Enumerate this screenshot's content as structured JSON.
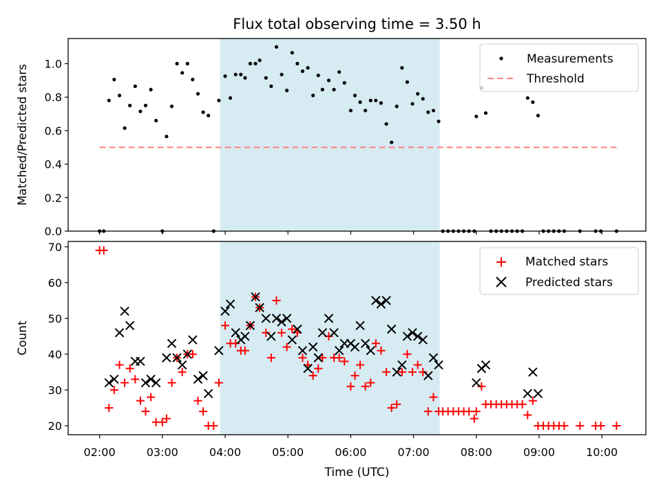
{
  "chart_data": [
    {
      "type": "scatter",
      "title": "Flux total observing time = 3.50 h",
      "xlabel": "",
      "ylabel": "Matched/Predicted stars",
      "xlim": [
        1.5,
        10.7
      ],
      "ylim": [
        0.0,
        1.15
      ],
      "yticks": [
        0.0,
        0.2,
        0.4,
        0.6,
        0.8,
        1.0
      ],
      "yticklabels": [
        "0.0",
        "0.2",
        "0.4",
        "0.6",
        "0.8",
        "1.0"
      ],
      "shaded_span": [
        3.917,
        7.417
      ],
      "threshold": {
        "label": "Threshold",
        "y": 0.5,
        "x": [
          2.0,
          10.233
        ],
        "color": "#ff8080"
      },
      "legend": {
        "position": "top-right",
        "entries": [
          "Measurements",
          "Threshold"
        ]
      },
      "series": [
        {
          "name": "Measurements",
          "color": "#000000",
          "points": [
            [
              2.0,
              0.0
            ],
            [
              2.067,
              0.0
            ],
            [
              2.15,
              0.78
            ],
            [
              2.233,
              0.905
            ],
            [
              2.317,
              0.81
            ],
            [
              2.4,
              0.615
            ],
            [
              2.483,
              0.75
            ],
            [
              2.567,
              0.865
            ],
            [
              2.65,
              0.715
            ],
            [
              2.733,
              0.75
            ],
            [
              2.817,
              0.845
            ],
            [
              2.9,
              0.66
            ],
            [
              3.0,
              0.0
            ],
            [
              3.067,
              0.565
            ],
            [
              3.15,
              0.745
            ],
            [
              3.233,
              1.0
            ],
            [
              3.317,
              0.945
            ],
            [
              3.4,
              1.0
            ],
            [
              3.483,
              0.905
            ],
            [
              3.567,
              0.82
            ],
            [
              3.65,
              0.71
            ],
            [
              3.733,
              0.69
            ],
            [
              3.817,
              0.0
            ],
            [
              3.9,
              0.78
            ],
            [
              4.0,
              0.925
            ],
            [
              4.083,
              0.795
            ],
            [
              4.167,
              0.935
            ],
            [
              4.25,
              0.935
            ],
            [
              4.317,
              0.915
            ],
            [
              4.4,
              1.0
            ],
            [
              4.483,
              1.0
            ],
            [
              4.55,
              1.02
            ],
            [
              4.65,
              0.915
            ],
            [
              4.733,
              0.865
            ],
            [
              4.817,
              1.1
            ],
            [
              4.9,
              0.935
            ],
            [
              4.983,
              0.84
            ],
            [
              5.067,
              1.065
            ],
            [
              5.15,
              1.0
            ],
            [
              5.233,
              0.955
            ],
            [
              5.317,
              0.975
            ],
            [
              5.4,
              0.81
            ],
            [
              5.483,
              0.93
            ],
            [
              5.55,
              0.845
            ],
            [
              5.65,
              0.9
            ],
            [
              5.733,
              0.845
            ],
            [
              5.817,
              0.95
            ],
            [
              5.9,
              0.885
            ],
            [
              6.0,
              0.72
            ],
            [
              6.067,
              0.81
            ],
            [
              6.15,
              0.77
            ],
            [
              6.233,
              0.72
            ],
            [
              6.317,
              0.78
            ],
            [
              6.4,
              0.78
            ],
            [
              6.483,
              0.765
            ],
            [
              6.567,
              0.64
            ],
            [
              6.65,
              0.53
            ],
            [
              6.733,
              0.745
            ],
            [
              6.817,
              0.975
            ],
            [
              6.9,
              0.89
            ],
            [
              6.983,
              0.76
            ],
            [
              7.067,
              0.82
            ],
            [
              7.15,
              0.79
            ],
            [
              7.233,
              0.71
            ],
            [
              7.317,
              0.72
            ],
            [
              7.4,
              0.655
            ],
            [
              7.467,
              0.0
            ],
            [
              7.55,
              0.0
            ],
            [
              7.633,
              0.0
            ],
            [
              7.717,
              0.0
            ],
            [
              7.8,
              0.0
            ],
            [
              7.883,
              0.0
            ],
            [
              7.967,
              0.0
            ],
            [
              8.0,
              0.685
            ],
            [
              8.083,
              0.855
            ],
            [
              8.15,
              0.705
            ],
            [
              8.233,
              0.0
            ],
            [
              8.317,
              0.0
            ],
            [
              8.4,
              0.0
            ],
            [
              8.483,
              0.0
            ],
            [
              8.567,
              0.0
            ],
            [
              8.65,
              0.0
            ],
            [
              8.733,
              0.0
            ],
            [
              8.817,
              0.795
            ],
            [
              8.9,
              0.77
            ],
            [
              8.983,
              0.69
            ],
            [
              9.067,
              0.0
            ],
            [
              9.15,
              0.0
            ],
            [
              9.233,
              0.0
            ],
            [
              9.317,
              0.0
            ],
            [
              9.4,
              0.0
            ],
            [
              9.65,
              0.0
            ],
            [
              9.9,
              0.0
            ],
            [
              9.983,
              0.0
            ],
            [
              10.233,
              0.0
            ]
          ]
        }
      ]
    },
    {
      "type": "scatter",
      "title": "",
      "xlabel": "Time (UTC)",
      "ylabel": "Count",
      "xlim": [
        1.5,
        10.7
      ],
      "ylim": [
        17.5,
        71.5
      ],
      "xticks": [
        2,
        3,
        4,
        5,
        6,
        7,
        8,
        9,
        10
      ],
      "xticklabels": [
        "02:00",
        "03:00",
        "04:00",
        "05:00",
        "06:00",
        "07:00",
        "08:00",
        "09:00",
        "10:00"
      ],
      "yticks": [
        20,
        30,
        40,
        50,
        60,
        70
      ],
      "yticklabels": [
        "20",
        "30",
        "40",
        "50",
        "60",
        "70"
      ],
      "shaded_span": [
        3.917,
        7.417
      ],
      "legend": {
        "position": "top-right",
        "entries": [
          "Matched stars",
          "Predicted stars"
        ]
      },
      "series": [
        {
          "name": "Matched stars",
          "marker": "plus",
          "color": "#ff0000",
          "points": [
            [
              2.0,
              69
            ],
            [
              2.067,
              69
            ],
            [
              2.15,
              25
            ],
            [
              2.233,
              30
            ],
            [
              2.317,
              37
            ],
            [
              2.4,
              32
            ],
            [
              2.483,
              36
            ],
            [
              2.567,
              33
            ],
            [
              2.65,
              27
            ],
            [
              2.733,
              24
            ],
            [
              2.817,
              28
            ],
            [
              2.9,
              21
            ],
            [
              3.0,
              21
            ],
            [
              3.067,
              22
            ],
            [
              3.15,
              32
            ],
            [
              3.233,
              39
            ],
            [
              3.317,
              35
            ],
            [
              3.4,
              40
            ],
            [
              3.483,
              40
            ],
            [
              3.567,
              27
            ],
            [
              3.65,
              24
            ],
            [
              3.733,
              20
            ],
            [
              3.817,
              20
            ],
            [
              3.9,
              32
            ],
            [
              4.0,
              48
            ],
            [
              4.083,
              43
            ],
            [
              4.167,
              43
            ],
            [
              4.25,
              41
            ],
            [
              4.317,
              41
            ],
            [
              4.4,
              48
            ],
            [
              4.483,
              56
            ],
            [
              4.55,
              53
            ],
            [
              4.65,
              46
            ],
            [
              4.733,
              39
            ],
            [
              4.817,
              55
            ],
            [
              4.9,
              46
            ],
            [
              4.983,
              42
            ],
            [
              5.067,
              47
            ],
            [
              5.15,
              46
            ],
            [
              5.233,
              39
            ],
            [
              5.317,
              37
            ],
            [
              5.4,
              34
            ],
            [
              5.483,
              36
            ],
            [
              5.55,
              39
            ],
            [
              5.65,
              45
            ],
            [
              5.733,
              39
            ],
            [
              5.817,
              39
            ],
            [
              5.9,
              38
            ],
            [
              6.0,
              31
            ],
            [
              6.067,
              34
            ],
            [
              6.15,
              37
            ],
            [
              6.233,
              31
            ],
            [
              6.317,
              32
            ],
            [
              6.4,
              43
            ],
            [
              6.483,
              41
            ],
            [
              6.567,
              35
            ],
            [
              6.65,
              25
            ],
            [
              6.733,
              26
            ],
            [
              6.817,
              35
            ],
            [
              6.9,
              40
            ],
            [
              6.983,
              35
            ],
            [
              7.067,
              37
            ],
            [
              7.15,
              35
            ],
            [
              7.233,
              24
            ],
            [
              7.317,
              28
            ],
            [
              7.4,
              24
            ],
            [
              7.467,
              24
            ],
            [
              7.55,
              24
            ],
            [
              7.633,
              24
            ],
            [
              7.717,
              24
            ],
            [
              7.8,
              24
            ],
            [
              7.883,
              24
            ],
            [
              7.967,
              22
            ],
            [
              8.0,
              24
            ],
            [
              8.083,
              31
            ],
            [
              8.15,
              26
            ],
            [
              8.233,
              26
            ],
            [
              8.317,
              26
            ],
            [
              8.4,
              26
            ],
            [
              8.483,
              26
            ],
            [
              8.567,
              26
            ],
            [
              8.65,
              26
            ],
            [
              8.733,
              26
            ],
            [
              8.817,
              23
            ],
            [
              8.9,
              27
            ],
            [
              8.983,
              20
            ],
            [
              9.067,
              20
            ],
            [
              9.15,
              20
            ],
            [
              9.233,
              20
            ],
            [
              9.317,
              20
            ],
            [
              9.4,
              20
            ],
            [
              9.65,
              20
            ],
            [
              9.9,
              20
            ],
            [
              9.983,
              20
            ],
            [
              10.233,
              20
            ]
          ]
        },
        {
          "name": "Predicted stars",
          "marker": "x",
          "color": "#000000",
          "points": [
            [
              2.15,
              32
            ],
            [
              2.233,
              33
            ],
            [
              2.317,
              46
            ],
            [
              2.4,
              52
            ],
            [
              2.483,
              48
            ],
            [
              2.567,
              38
            ],
            [
              2.65,
              38
            ],
            [
              2.733,
              32
            ],
            [
              2.817,
              33
            ],
            [
              2.9,
              32
            ],
            [
              3.067,
              39
            ],
            [
              3.15,
              43
            ],
            [
              3.233,
              39
            ],
            [
              3.317,
              37
            ],
            [
              3.4,
              40
            ],
            [
              3.483,
              44
            ],
            [
              3.567,
              33
            ],
            [
              3.65,
              34
            ],
            [
              3.733,
              29
            ],
            [
              3.9,
              41
            ],
            [
              4.0,
              52
            ],
            [
              4.083,
              54
            ],
            [
              4.167,
              46
            ],
            [
              4.25,
              44
            ],
            [
              4.317,
              45
            ],
            [
              4.4,
              48
            ],
            [
              4.483,
              56
            ],
            [
              4.55,
              53
            ],
            [
              4.65,
              50
            ],
            [
              4.733,
              45
            ],
            [
              4.817,
              50
            ],
            [
              4.9,
              49
            ],
            [
              4.983,
              50
            ],
            [
              5.067,
              44
            ],
            [
              5.15,
              47
            ],
            [
              5.233,
              41
            ],
            [
              5.317,
              36
            ],
            [
              5.4,
              42
            ],
            [
              5.483,
              39
            ],
            [
              5.55,
              46
            ],
            [
              5.65,
              50
            ],
            [
              5.733,
              46
            ],
            [
              5.817,
              41
            ],
            [
              5.9,
              43
            ],
            [
              6.0,
              43
            ],
            [
              6.067,
              42
            ],
            [
              6.15,
              48
            ],
            [
              6.233,
              43
            ],
            [
              6.317,
              41
            ],
            [
              6.4,
              55
            ],
            [
              6.483,
              54
            ],
            [
              6.567,
              55
            ],
            [
              6.65,
              47
            ],
            [
              6.733,
              35
            ],
            [
              6.817,
              37
            ],
            [
              6.9,
              45
            ],
            [
              6.983,
              46
            ],
            [
              7.067,
              45
            ],
            [
              7.15,
              44
            ],
            [
              7.233,
              34
            ],
            [
              7.317,
              39
            ],
            [
              7.4,
              37
            ],
            [
              8.0,
              32
            ],
            [
              8.083,
              36
            ],
            [
              8.15,
              37
            ],
            [
              8.817,
              29
            ],
            [
              8.9,
              35
            ],
            [
              8.983,
              29
            ]
          ]
        }
      ]
    }
  ]
}
